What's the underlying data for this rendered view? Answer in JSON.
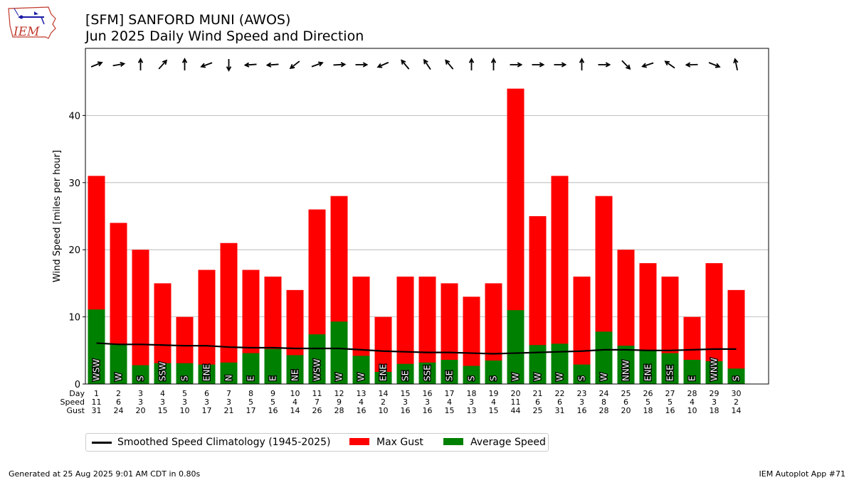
{
  "logo": {
    "text": "IEM"
  },
  "title": {
    "line1": "[SFM] SANFORD MUNI (AWOS)",
    "line2": "Jun 2025 Daily Wind Speed and Direction"
  },
  "chart_data": {
    "type": "bar",
    "ylabel": "Wind Speed [miles per hour]",
    "ylim": [
      0,
      50
    ],
    "yticks": [
      0,
      10,
      20,
      30,
      40
    ],
    "grid": true,
    "row_labels": [
      "Day",
      "Speed",
      "Gust"
    ],
    "days": [
      1,
      2,
      3,
      4,
      5,
      6,
      7,
      8,
      9,
      10,
      11,
      12,
      13,
      14,
      15,
      16,
      17,
      18,
      19,
      20,
      21,
      22,
      23,
      24,
      25,
      26,
      27,
      28,
      29,
      30
    ],
    "speed_labels": [
      11,
      6,
      3,
      3,
      3,
      3,
      3,
      5,
      5,
      4,
      7,
      9,
      4,
      2,
      3,
      3,
      4,
      3,
      4,
      11,
      6,
      6,
      3,
      8,
      6,
      5,
      5,
      4,
      3,
      2
    ],
    "avg_speed": [
      11.1,
      6.0,
      2.8,
      3.1,
      3.1,
      2.9,
      3.2,
      4.6,
      5.2,
      4.3,
      7.4,
      9.3,
      4.2,
      1.8,
      3.0,
      3.2,
      3.6,
      2.7,
      3.5,
      11.0,
      5.8,
      6.0,
      2.9,
      7.8,
      5.7,
      5.1,
      4.6,
      3.6,
      3.4,
      2.3
    ],
    "max_gust": [
      31,
      24,
      20,
      15,
      10,
      17,
      21,
      17,
      16,
      14,
      26,
      28,
      16,
      10,
      16,
      16,
      15,
      13,
      15,
      44,
      25,
      31,
      16,
      28,
      20,
      18,
      16,
      10,
      18,
      14
    ],
    "direction_labels": [
      "WSW",
      "W",
      "S",
      "SSW",
      "S",
      "ENE",
      "N",
      "E",
      "E",
      "NE",
      "WSW",
      "W",
      "W",
      "ENE",
      "SE",
      "SSE",
      "SE",
      "S",
      "S",
      "W",
      "W",
      "W",
      "S",
      "W",
      "NNW",
      "ENE",
      "ESE",
      "E",
      "WNW",
      "S"
    ],
    "arrow_angles_deg": [
      -22,
      -10,
      -90,
      -48,
      -90,
      160,
      90,
      176,
      176,
      142,
      -20,
      -3,
      0,
      156,
      -130,
      -124,
      -130,
      -90,
      -90,
      0,
      0,
      0,
      -90,
      0,
      46,
      162,
      -145,
      178,
      22,
      -102
    ],
    "climatology": [
      6.1,
      5.9,
      5.9,
      5.8,
      5.7,
      5.7,
      5.5,
      5.4,
      5.4,
      5.3,
      5.3,
      5.3,
      5.1,
      4.9,
      4.8,
      4.7,
      4.7,
      4.6,
      4.5,
      4.6,
      4.7,
      4.8,
      4.9,
      5.1,
      5.1,
      5.0,
      5.0,
      5.1,
      5.2,
      5.2
    ],
    "series": [
      {
        "name": "Smoothed Speed Climatology (1945-2025)",
        "color": "#000000"
      },
      {
        "name": "Max Gust",
        "color": "#ff0000"
      },
      {
        "name": "Average Speed",
        "color": "#008000"
      }
    ]
  },
  "footer": {
    "left": "Generated at 25 Aug 2025 9:01 AM CDT in 0.80s",
    "right": "IEM Autoplot App #71"
  }
}
